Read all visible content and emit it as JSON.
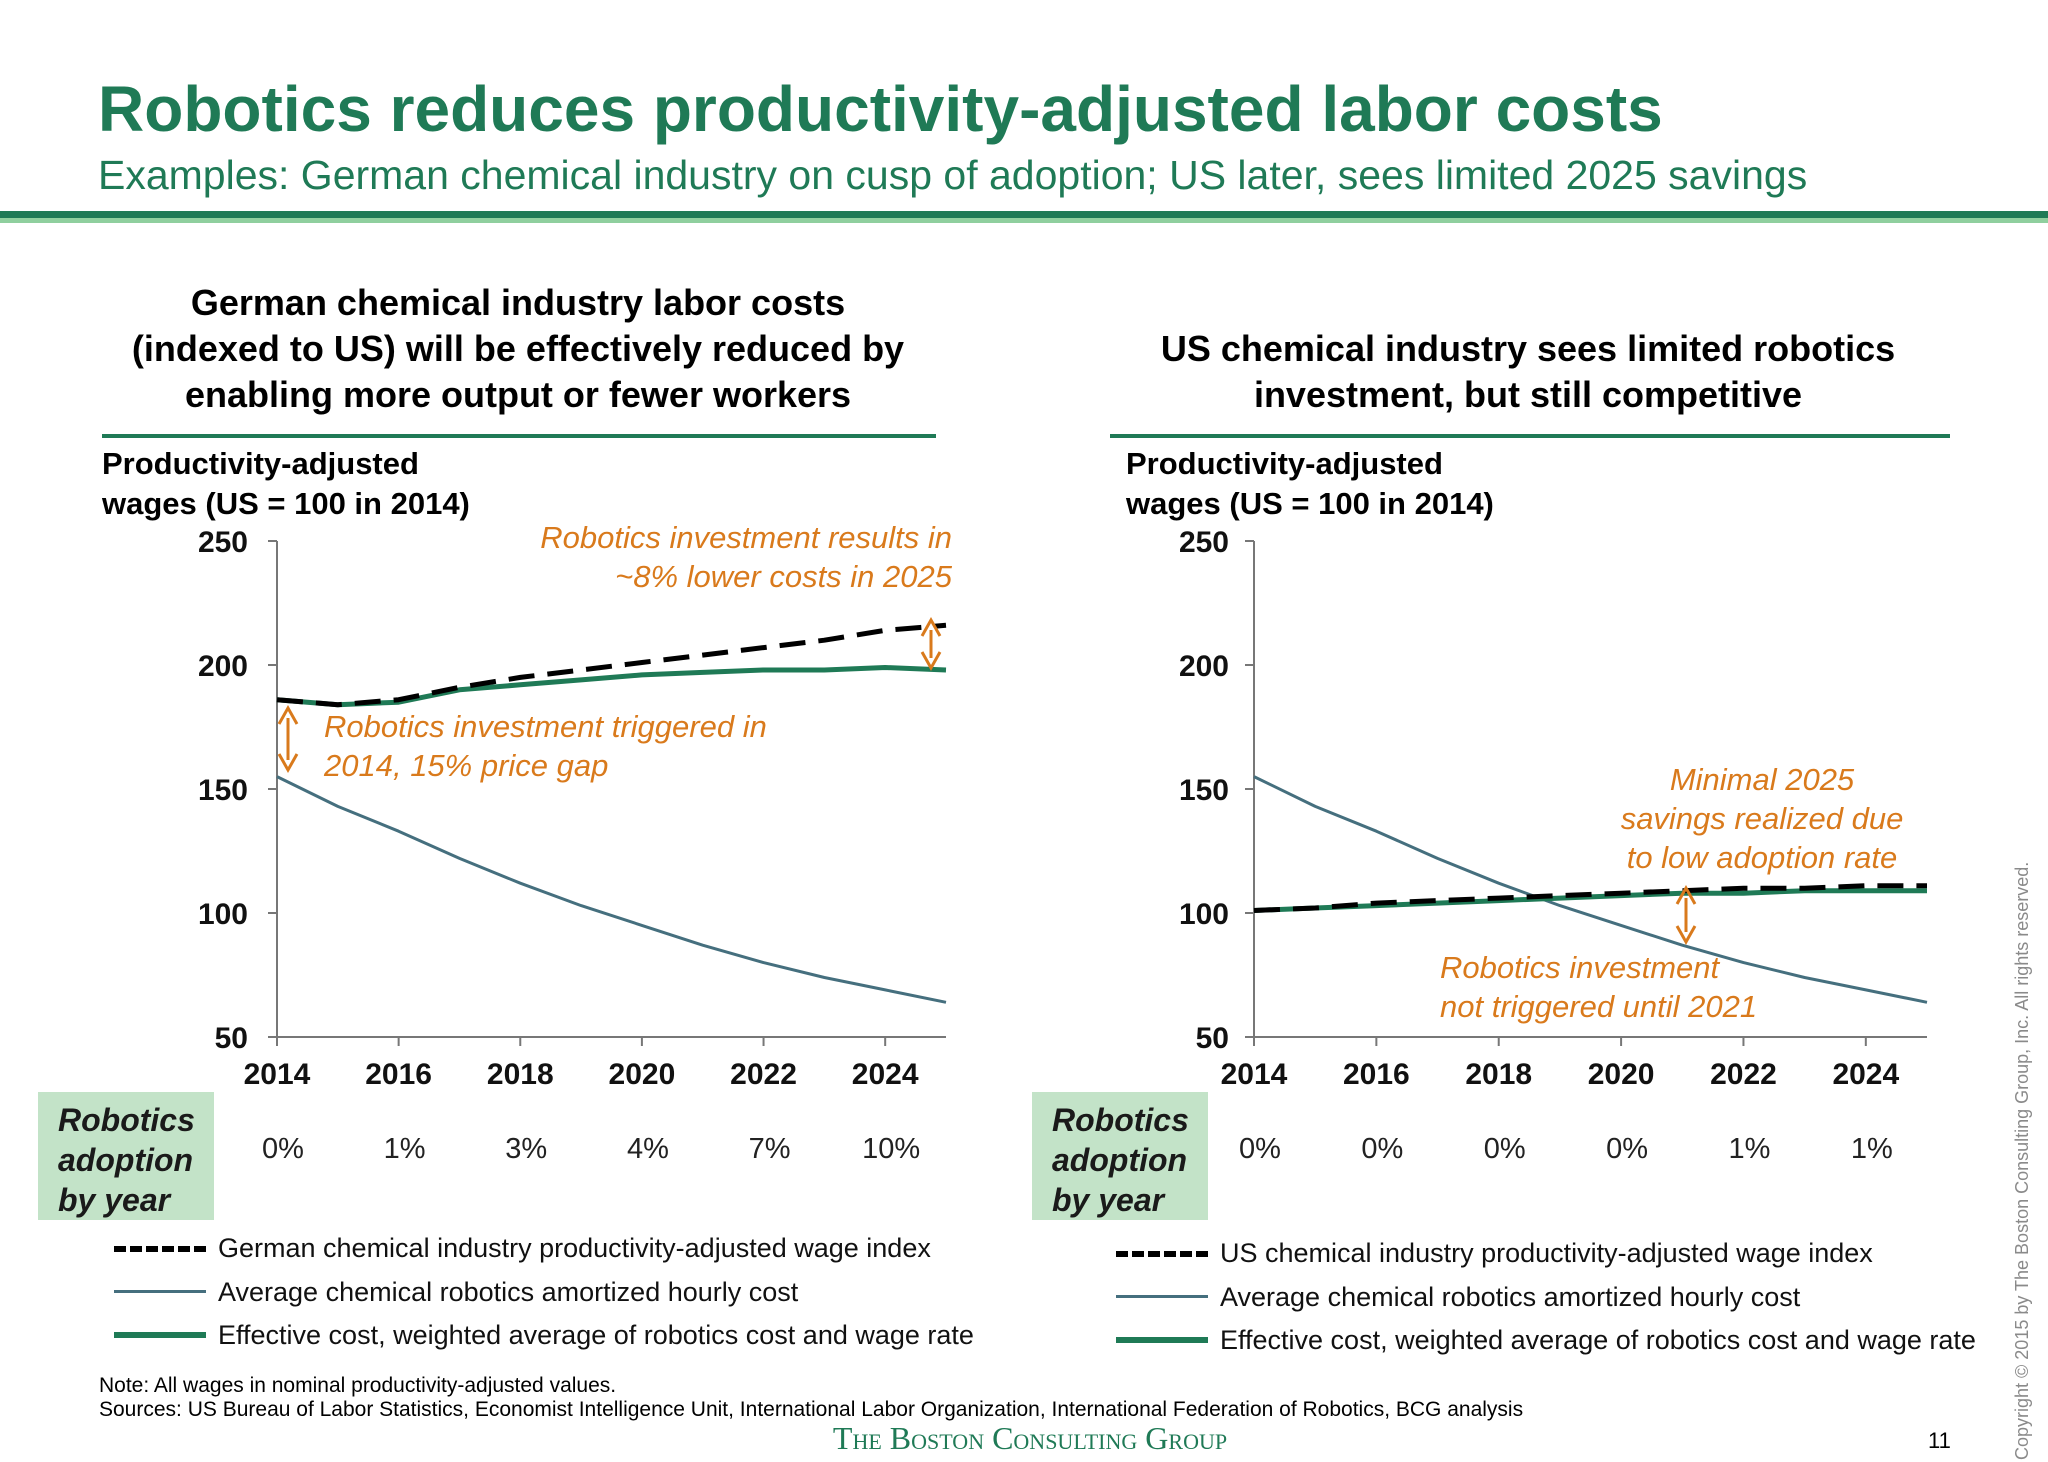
{
  "title": "Robotics reduces productivity-adjusted labor costs",
  "subtitle": "Examples: German chemical industry on cusp of adoption; US later, sees limited 2025 savings",
  "panels": [
    {
      "title_lines": [
        "German chemical industry labor costs",
        "(indexed to US) will be effectively reduced by",
        "enabling more output or fewer workers"
      ],
      "ylabel_lines": [
        "Productivity-adjusted",
        "wages (US = 100 in 2014)"
      ],
      "adoption_label_lines": [
        "Robotics",
        "adoption",
        "by year"
      ],
      "adoption_values": [
        "0%",
        "1%",
        "3%",
        "4%",
        "7%",
        "10%"
      ],
      "annotations": [
        {
          "lines": [
            "Robotics investment results in",
            "~8% lower costs in 2025"
          ]
        },
        {
          "lines": [
            "Robotics investment triggered in",
            "2014, 15% price gap"
          ]
        }
      ],
      "legend": [
        "German chemical industry productivity-adjusted wage index",
        "Average chemical robotics amortized hourly cost",
        "Effective cost, weighted average of robotics cost and wage rate"
      ]
    },
    {
      "title_lines": [
        "US chemical industry sees limited robotics",
        "investment, but still competitive"
      ],
      "ylabel_lines": [
        "Productivity-adjusted",
        "wages (US = 100 in 2014)"
      ],
      "adoption_label_lines": [
        "Robotics",
        "adoption",
        "by year"
      ],
      "adoption_values": [
        "0%",
        "0%",
        "0%",
        "0%",
        "1%",
        "1%"
      ],
      "annotations": [
        {
          "lines": [
            "Minimal 2025",
            "savings realized due",
            "to low adoption rate"
          ]
        },
        {
          "lines": [
            "Robotics investment",
            "not triggered until 2021"
          ]
        }
      ],
      "legend": [
        "US chemical industry productivity-adjusted wage index",
        "Average chemical robotics amortized hourly cost",
        "Effective cost, weighted average of robotics cost and wage rate"
      ]
    }
  ],
  "colors": {
    "brand_green": "#1f7a56",
    "wage_index": "#000000",
    "robotics_cost": "#456f7e",
    "effective_cost": "#1f7a56",
    "annotation": "#d97a1c",
    "adoption_box": "#c3e3c8"
  },
  "chart_data": [
    {
      "type": "line",
      "title": "German chemical industry labor costs (indexed to US) will be effectively reduced by enabling more output or fewer workers",
      "ylabel": "Productivity-adjusted wages (US = 100 in 2014)",
      "ylim": [
        50,
        250
      ],
      "xlim": [
        2014,
        2025
      ],
      "x_ticks": [
        2014,
        2016,
        2018,
        2020,
        2022,
        2024
      ],
      "y_ticks": [
        50,
        100,
        150,
        200,
        250
      ],
      "grid": false,
      "legend_position": "bottom",
      "x": [
        2014,
        2015,
        2016,
        2017,
        2018,
        2019,
        2020,
        2021,
        2022,
        2023,
        2024,
        2025
      ],
      "series": [
        {
          "name": "German chemical industry productivity-adjusted wage index",
          "style": "dashed",
          "color": "#000000",
          "values": [
            186,
            184,
            186,
            191,
            195,
            198,
            201,
            204,
            207,
            210,
            214,
            216
          ]
        },
        {
          "name": "Average chemical robotics amortized hourly cost",
          "style": "solid",
          "color": "#456f7e",
          "values": [
            155,
            143,
            133,
            122,
            112,
            103,
            95,
            87,
            80,
            74,
            69,
            64
          ]
        },
        {
          "name": "Effective cost, weighted average of robotics cost and wage rate",
          "style": "solid-thick",
          "color": "#1f7a56",
          "values": [
            186,
            184,
            185,
            190,
            192,
            194,
            196,
            197,
            198,
            198,
            199,
            198
          ]
        }
      ],
      "adoption_by_year": {
        "x": [
          2014,
          2016,
          2018,
          2020,
          2022,
          2024
        ],
        "values": [
          "0%",
          "1%",
          "3%",
          "4%",
          "7%",
          "10%"
        ]
      }
    },
    {
      "type": "line",
      "title": "US chemical industry sees limited robotics investment, but still competitive",
      "ylabel": "Productivity-adjusted wages (US = 100 in 2014)",
      "ylim": [
        50,
        250
      ],
      "xlim": [
        2014,
        2025
      ],
      "x_ticks": [
        2014,
        2016,
        2018,
        2020,
        2022,
        2024
      ],
      "y_ticks": [
        50,
        100,
        150,
        200,
        250
      ],
      "grid": false,
      "legend_position": "bottom",
      "x": [
        2014,
        2015,
        2016,
        2017,
        2018,
        2019,
        2020,
        2021,
        2022,
        2023,
        2024,
        2025
      ],
      "series": [
        {
          "name": "US chemical industry productivity-adjusted wage index",
          "style": "dashed",
          "color": "#000000",
          "values": [
            101,
            102,
            104,
            105,
            106,
            107,
            108,
            109,
            110,
            110,
            111,
            111
          ]
        },
        {
          "name": "Average chemical robotics amortized hourly cost",
          "style": "solid",
          "color": "#456f7e",
          "values": [
            155,
            143,
            133,
            122,
            112,
            103,
            95,
            87,
            80,
            74,
            69,
            64
          ]
        },
        {
          "name": "Effective cost, weighted average of robotics cost and wage rate",
          "style": "solid-thick",
          "color": "#1f7a56",
          "values": [
            101,
            102,
            103,
            104,
            105,
            106,
            107,
            108,
            108,
            109,
            109,
            109
          ]
        }
      ],
      "adoption_by_year": {
        "x": [
          2014,
          2016,
          2018,
          2020,
          2022,
          2024
        ],
        "values": [
          "0%",
          "0%",
          "0%",
          "0%",
          "1%",
          "1%"
        ]
      }
    }
  ],
  "footer": {
    "note": "Note: All wages in nominal productivity-adjusted values.",
    "sources": "Sources: US Bureau of Labor Statistics, Economist Intelligence Unit, International Labor Organization, International Federation of Robotics, BCG analysis",
    "brand": "The Boston Consulting Group",
    "page_number": "11",
    "copyright": "Copyright © 2015 by The Boston Consulting Group, Inc. All rights reserved."
  }
}
